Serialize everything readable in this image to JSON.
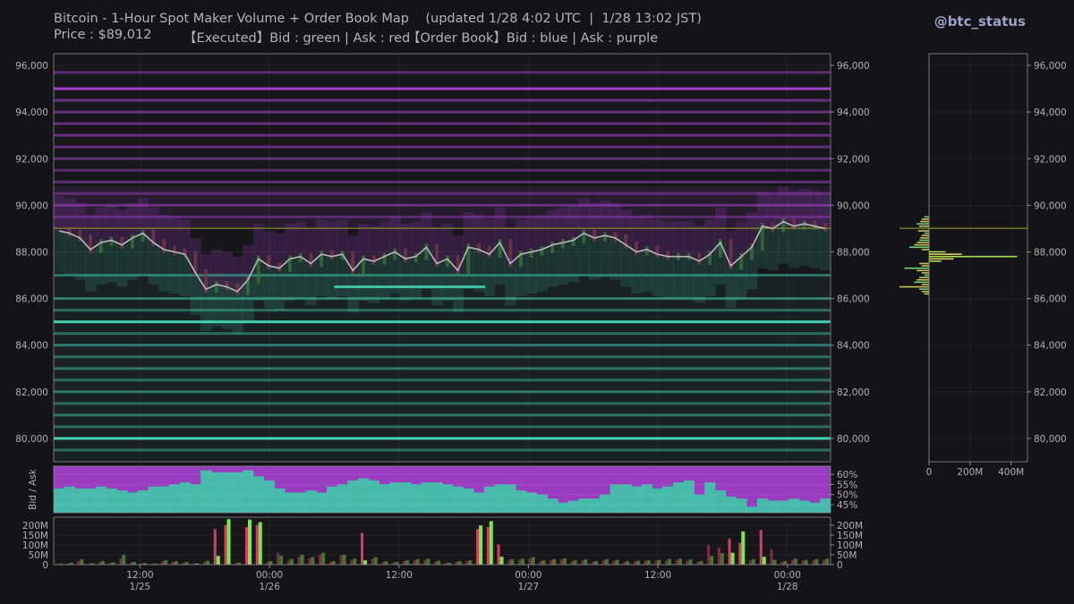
{
  "header": {
    "title": "Bitcoin - 1-Hour Spot Maker Volume + Order Book Map    (updated 1/28 4:02 UTC  |  1/28 13:02 JST)",
    "price_text": "Price : $89,012",
    "executed_text": "【Executed】Bid : green | Ask : red",
    "orderbook_text": "【Order Book】Bid : blue | Ask : purple",
    "handle": "@btc_status"
  },
  "colors": {
    "background": "#141418",
    "bid_executed": "#7ee84a",
    "ask_executed": "#d63c64",
    "bid_book": "#3ec8a8",
    "ask_book": "#9a3cc0",
    "price_line": "#b8b8b8",
    "current_price_line": "#8a8a2a"
  },
  "chart_data": [
    {
      "type": "heatmap",
      "name": "order-book-map",
      "x_ticks": [
        {
          "t": 12,
          "label": "12:00",
          "date": "1/25"
        },
        {
          "t": 24,
          "label": "00:00",
          "date": "1/26"
        },
        {
          "t": 36,
          "label": "12:00",
          "date": ""
        },
        {
          "t": 48,
          "label": "00:00",
          "date": "1/27"
        },
        {
          "t": 60,
          "label": "12:00",
          "date": ""
        },
        {
          "t": 72,
          "label": "00:00",
          "date": "1/28"
        }
      ],
      "x_range": [
        4,
        76
      ],
      "ylim": [
        79000,
        96500
      ],
      "y_ticks": [
        "80,000",
        "82,000",
        "84,000",
        "86,000",
        "88,000",
        "90,000",
        "92,000",
        "94,000",
        "96,000"
      ],
      "y_tick_values": [
        80000,
        82000,
        84000,
        86000,
        88000,
        90000,
        92000,
        94000,
        96000
      ],
      "current_price": 89012,
      "price_series": [
        88900,
        88800,
        88600,
        88100,
        88400,
        88500,
        88300,
        88600,
        88800,
        88400,
        88100,
        88000,
        87900,
        87100,
        86400,
        86600,
        86500,
        86300,
        86800,
        87700,
        87400,
        87300,
        87700,
        87800,
        87500,
        87900,
        87800,
        87900,
        87200,
        87700,
        87600,
        87800,
        88000,
        87700,
        87800,
        88200,
        87500,
        87700,
        87200,
        88200,
        88100,
        87900,
        88400,
        87500,
        87900,
        88000,
        88100,
        88300,
        88400,
        88500,
        88800,
        88600,
        88700,
        88600,
        88300,
        88000,
        88100,
        87900,
        87800,
        87800,
        87800,
        87600,
        87900,
        88400,
        87400,
        87800,
        88200,
        89100,
        89000,
        89300,
        89100,
        89200,
        89100,
        89000
      ],
      "ask_walls": [
        {
          "price": 95000,
          "strength": 1.0
        },
        {
          "price": 95700,
          "strength": 0.35
        },
        {
          "price": 94500,
          "strength": 0.45
        },
        {
          "price": 94000,
          "strength": 0.4
        },
        {
          "price": 93500,
          "strength": 0.4
        },
        {
          "price": 93000,
          "strength": 0.45
        },
        {
          "price": 92500,
          "strength": 0.4
        },
        {
          "price": 92000,
          "strength": 0.4
        },
        {
          "price": 91500,
          "strength": 0.3
        },
        {
          "price": 91000,
          "strength": 0.35
        },
        {
          "price": 90500,
          "strength": 0.3
        },
        {
          "price": 90000,
          "strength": 0.35
        },
        {
          "price": 89500,
          "strength": 0.25
        }
      ],
      "bid_walls": [
        {
          "price": 85000,
          "strength": 1.0
        },
        {
          "price": 80000,
          "strength": 1.0
        },
        {
          "price": 86500,
          "strength": 0.9,
          "t_start": 30,
          "t_end": 44
        },
        {
          "price": 87000,
          "strength": 0.35
        },
        {
          "price": 86000,
          "strength": 0.4
        },
        {
          "price": 85500,
          "strength": 0.3
        },
        {
          "price": 84500,
          "strength": 0.3
        },
        {
          "price": 84000,
          "strength": 0.35
        },
        {
          "price": 83500,
          "strength": 0.3
        },
        {
          "price": 83000,
          "strength": 0.35
        },
        {
          "price": 82500,
          "strength": 0.3
        },
        {
          "price": 82000,
          "strength": 0.35
        },
        {
          "price": 81500,
          "strength": 0.3
        },
        {
          "price": 81000,
          "strength": 0.35
        },
        {
          "price": 80500,
          "strength": 0.3
        },
        {
          "price": 79500,
          "strength": 0.3
        }
      ]
    },
    {
      "type": "area",
      "name": "bid-ask-ratio",
      "ylabel": "Bid / Ask",
      "ylim": [
        41,
        64
      ],
      "y_ticks": [
        "45%",
        "50%",
        "55%",
        "60%"
      ],
      "y_tick_values": [
        45,
        50,
        55,
        60
      ],
      "bid_share": [
        53,
        54,
        53,
        53,
        54,
        53,
        52,
        51,
        52,
        54,
        54,
        55,
        56,
        55,
        62,
        61,
        61,
        61,
        62,
        59,
        57,
        53,
        51,
        51,
        52,
        51,
        54,
        55,
        57,
        58,
        57,
        55,
        56,
        56,
        55,
        56,
        56,
        55,
        54,
        53,
        51,
        54,
        55,
        55,
        52,
        51,
        50,
        48,
        46,
        47,
        48,
        48,
        50,
        55,
        55,
        54,
        55,
        53,
        54,
        56,
        57,
        50,
        56,
        52,
        49,
        48,
        44,
        48,
        47,
        47,
        48,
        47,
        46,
        48
      ]
    },
    {
      "type": "bar",
      "name": "executed-volume",
      "ylim": [
        0,
        240
      ],
      "y_ticks": [
        "0",
        "50M",
        "100M",
        "150M",
        "200M"
      ],
      "y_tick_values": [
        0,
        50,
        100,
        150,
        200
      ],
      "bid_volume": [
        5,
        10,
        28,
        8,
        18,
        12,
        48,
        14,
        8,
        6,
        22,
        18,
        14,
        8,
        20,
        44,
        230,
        10,
        228,
        215,
        18,
        45,
        28,
        50,
        38,
        60,
        18,
        50,
        30,
        22,
        38,
        18,
        14,
        22,
        28,
        30,
        20,
        10,
        18,
        22,
        198,
        220,
        40,
        28,
        30,
        38,
        22,
        28,
        32,
        22,
        26,
        18,
        28,
        24,
        18,
        20,
        22,
        24,
        28,
        30,
        26,
        18,
        44,
        58,
        60,
        168,
        28,
        40,
        24,
        18,
        30,
        24,
        28,
        30
      ],
      "ask_volume": [
        3,
        6,
        18,
        6,
        12,
        8,
        30,
        10,
        6,
        4,
        16,
        14,
        10,
        6,
        14,
        180,
        200,
        8,
        190,
        200,
        14,
        60,
        20,
        40,
        32,
        50,
        14,
        48,
        24,
        160,
        30,
        14,
        10,
        18,
        22,
        24,
        16,
        8,
        14,
        18,
        180,
        190,
        102,
        22,
        24,
        30,
        18,
        22,
        26,
        18,
        20,
        14,
        22,
        20,
        14,
        16,
        18,
        20,
        22,
        24,
        20,
        14,
        100,
        86,
        130,
        110,
        22,
        175,
        78,
        14,
        24,
        20,
        22,
        24
      ]
    },
    {
      "type": "bar",
      "name": "order-book-depth-profile",
      "orientation": "horizontal",
      "x_ticks": [
        "0",
        "200M",
        "400M"
      ],
      "x_tick_values": [
        0,
        200,
        400
      ],
      "xlim": [
        0,
        480
      ],
      "ylim": [
        79000,
        96500
      ],
      "y_ticks": [
        "80,000",
        "82,000",
        "84,000",
        "86,000",
        "88,000",
        "90,000",
        "92,000",
        "94,000",
        "96,000"
      ],
      "y_tick_values": [
        80000,
        82000,
        84000,
        86000,
        88000,
        90000,
        92000,
        94000,
        96000
      ],
      "profile_prices": [
        89500,
        89400,
        89300,
        89200,
        89100,
        88900,
        88800,
        88700,
        88600,
        88500,
        88400,
        88300,
        88200,
        88100,
        88000,
        87900,
        87800,
        87700,
        87600,
        87500,
        87400,
        87300,
        87200,
        87100,
        87000,
        86900,
        86800,
        86700,
        86600,
        86500,
        86400,
        86300,
        86200
      ],
      "profile_volumes": [
        -10,
        -15,
        -18,
        -25,
        -20,
        -22,
        -10,
        -15,
        -18,
        -20,
        -25,
        -30,
        -40,
        -15,
        80,
        160,
        430,
        120,
        60,
        -20,
        -15,
        -50,
        -25,
        -15,
        -10,
        -20,
        -25,
        -30,
        -15,
        -60,
        -20,
        -15,
        -10
      ]
    }
  ]
}
